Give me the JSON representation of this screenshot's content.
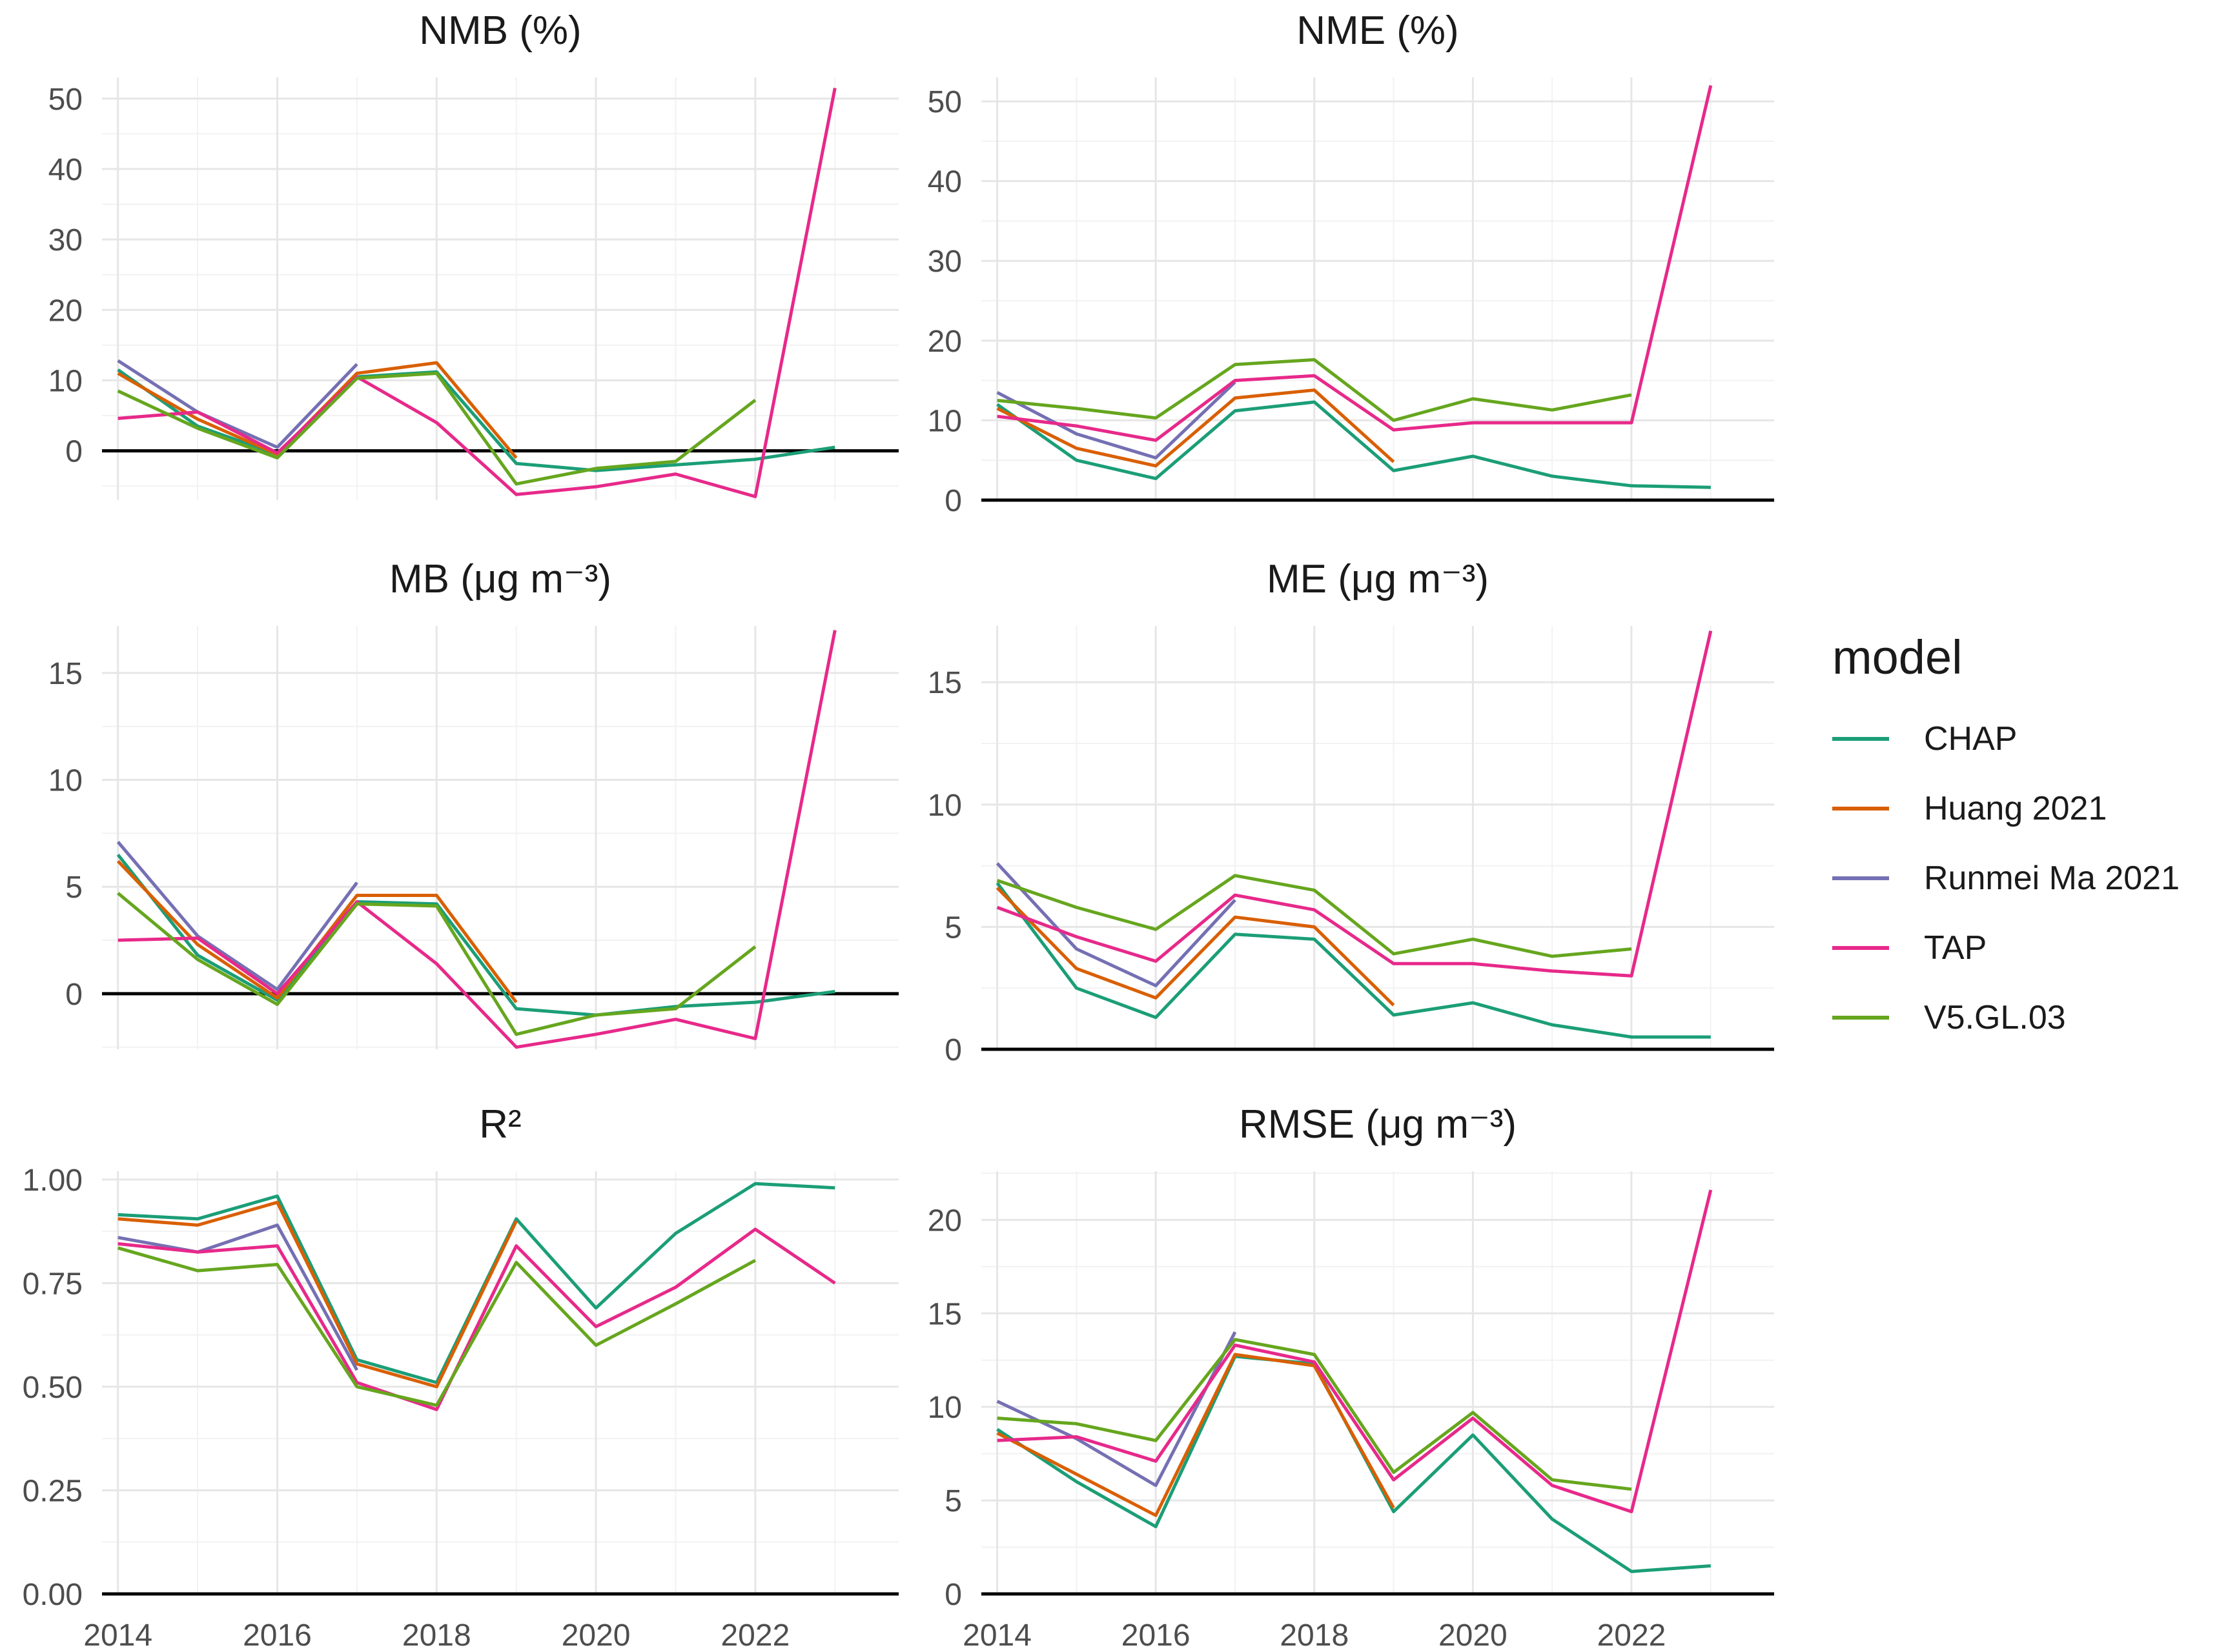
{
  "legend": {
    "title": "model",
    "items": [
      {
        "name": "CHAP",
        "color": "#1b9e77"
      },
      {
        "name": "Huang 2021",
        "color": "#d95f02"
      },
      {
        "name": "Runmei Ma 2021",
        "color": "#7570b3"
      },
      {
        "name": "TAP",
        "color": "#e7298a"
      },
      {
        "name": "V5.GL.03",
        "color": "#66a61e"
      }
    ]
  },
  "chart_data": [
    {
      "type": "line",
      "title": "NMB (%)",
      "xlabel": "",
      "ylabel": "",
      "x_ticks": [
        2014,
        2016,
        2018,
        2020,
        2022
      ],
      "ylim": [
        -7,
        53
      ],
      "y_ticks": [
        0,
        10,
        20,
        30,
        40,
        50
      ],
      "zero_line": true,
      "series": [
        {
          "name": "CHAP",
          "x": [
            2014,
            2015,
            2016,
            2017,
            2018,
            2019,
            2020,
            2021,
            2022,
            2023
          ],
          "values": [
            11.5,
            3.5,
            -0.5,
            10.5,
            11.2,
            -1.8,
            -2.8,
            -2.0,
            -1.2,
            0.5
          ]
        },
        {
          "name": "Huang 2021",
          "x": [
            2014,
            2015,
            2016,
            2017,
            2018,
            2019
          ],
          "values": [
            11.0,
            4.5,
            -0.5,
            11.0,
            12.5,
            -1.0
          ]
        },
        {
          "name": "Runmei Ma 2021",
          "x": [
            2014,
            2015,
            2016,
            2017
          ],
          "values": [
            12.8,
            5.5,
            0.5,
            12.3
          ]
        },
        {
          "name": "TAP",
          "x": [
            2014,
            2015,
            2016,
            2017,
            2018,
            2019,
            2020,
            2021,
            2022,
            2023
          ],
          "values": [
            4.6,
            5.5,
            -0.3,
            10.5,
            4.0,
            -6.2,
            -5.1,
            -3.3,
            -6.5,
            51.5
          ]
        },
        {
          "name": "V5.GL.03",
          "x": [
            2014,
            2015,
            2016,
            2017,
            2018,
            2019,
            2020,
            2021,
            2022
          ],
          "values": [
            8.5,
            3.2,
            -1.0,
            10.3,
            11.0,
            -4.7,
            -2.5,
            -1.5,
            7.2
          ]
        }
      ]
    },
    {
      "type": "line",
      "title": "NME (%)",
      "xlabel": "",
      "ylabel": "",
      "x_ticks": [
        2014,
        2016,
        2018,
        2020,
        2022
      ],
      "ylim": [
        0,
        53
      ],
      "y_ticks": [
        0,
        10,
        20,
        30,
        40,
        50
      ],
      "zero_line": true,
      "series": [
        {
          "name": "CHAP",
          "x": [
            2014,
            2015,
            2016,
            2017,
            2018,
            2019,
            2020,
            2021,
            2022,
            2023
          ],
          "values": [
            12.0,
            5.0,
            2.7,
            11.2,
            12.3,
            3.7,
            5.5,
            3.0,
            1.8,
            1.6
          ]
        },
        {
          "name": "Huang 2021",
          "x": [
            2014,
            2015,
            2016,
            2017,
            2018,
            2019
          ],
          "values": [
            11.5,
            6.5,
            4.3,
            12.8,
            13.8,
            4.8
          ]
        },
        {
          "name": "Runmei Ma 2021",
          "x": [
            2014,
            2015,
            2016,
            2017
          ],
          "values": [
            13.5,
            8.3,
            5.3,
            14.8
          ]
        },
        {
          "name": "TAP",
          "x": [
            2014,
            2015,
            2016,
            2017,
            2018,
            2019,
            2020,
            2021,
            2022,
            2023
          ],
          "values": [
            10.5,
            9.3,
            7.5,
            15.0,
            15.6,
            8.8,
            9.7,
            9.7,
            9.7,
            52.0
          ]
        },
        {
          "name": "V5.GL.03",
          "x": [
            2014,
            2015,
            2016,
            2017,
            2018,
            2019,
            2020,
            2021,
            2022
          ],
          "values": [
            12.5,
            11.5,
            10.3,
            17.0,
            17.6,
            10.0,
            12.7,
            11.3,
            13.2
          ]
        }
      ]
    },
    {
      "type": "line",
      "title": "MB (μg m⁻³)",
      "xlabel": "",
      "ylabel": "",
      "x_ticks": [
        2014,
        2016,
        2018,
        2020,
        2022
      ],
      "ylim": [
        -2.6,
        17.2
      ],
      "y_ticks": [
        0,
        5,
        10,
        15
      ],
      "zero_line": true,
      "series": [
        {
          "name": "CHAP",
          "x": [
            2014,
            2015,
            2016,
            2017,
            2018,
            2019,
            2020,
            2021,
            2022,
            2023
          ],
          "values": [
            6.5,
            1.8,
            -0.3,
            4.3,
            4.2,
            -0.7,
            -1.0,
            -0.6,
            -0.4,
            0.1
          ]
        },
        {
          "name": "Huang 2021",
          "x": [
            2014,
            2015,
            2016,
            2017,
            2018,
            2019
          ],
          "values": [
            6.2,
            2.3,
            -0.2,
            4.6,
            4.6,
            -0.4
          ]
        },
        {
          "name": "Runmei Ma 2021",
          "x": [
            2014,
            2015,
            2016,
            2017
          ],
          "values": [
            7.1,
            2.7,
            0.2,
            5.2
          ]
        },
        {
          "name": "TAP",
          "x": [
            2014,
            2015,
            2016,
            2017,
            2018,
            2019,
            2020,
            2021,
            2022,
            2023
          ],
          "values": [
            2.5,
            2.6,
            0.0,
            4.3,
            1.4,
            -2.5,
            -1.9,
            -1.2,
            -2.1,
            17.0
          ]
        },
        {
          "name": "V5.GL.03",
          "x": [
            2014,
            2015,
            2016,
            2017,
            2018,
            2019,
            2020,
            2021,
            2022
          ],
          "values": [
            4.7,
            1.6,
            -0.5,
            4.2,
            4.1,
            -1.9,
            -1.0,
            -0.7,
            2.2
          ]
        }
      ]
    },
    {
      "type": "line",
      "title": "ME (μg m⁻³)",
      "xlabel": "",
      "ylabel": "",
      "x_ticks": [
        2014,
        2016,
        2018,
        2020,
        2022
      ],
      "ylim": [
        0,
        17.3
      ],
      "y_ticks": [
        0,
        5,
        10,
        15
      ],
      "zero_line": true,
      "series": [
        {
          "name": "CHAP",
          "x": [
            2014,
            2015,
            2016,
            2017,
            2018,
            2019,
            2020,
            2021,
            2022,
            2023
          ],
          "values": [
            6.8,
            2.5,
            1.3,
            4.7,
            4.5,
            1.4,
            1.9,
            1.0,
            0.5,
            0.5
          ]
        },
        {
          "name": "Huang 2021",
          "x": [
            2014,
            2015,
            2016,
            2017,
            2018,
            2019
          ],
          "values": [
            6.6,
            3.3,
            2.1,
            5.4,
            5.0,
            1.8
          ]
        },
        {
          "name": "Runmei Ma 2021",
          "x": [
            2014,
            2015,
            2016,
            2017
          ],
          "values": [
            7.6,
            4.1,
            2.6,
            6.1
          ]
        },
        {
          "name": "TAP",
          "x": [
            2014,
            2015,
            2016,
            2017,
            2018,
            2019,
            2020,
            2021,
            2022,
            2023
          ],
          "values": [
            5.8,
            4.6,
            3.6,
            6.3,
            5.7,
            3.5,
            3.5,
            3.2,
            3.0,
            17.1
          ]
        },
        {
          "name": "V5.GL.03",
          "x": [
            2014,
            2015,
            2016,
            2017,
            2018,
            2019,
            2020,
            2021,
            2022
          ],
          "values": [
            6.9,
            5.8,
            4.9,
            7.1,
            6.5,
            3.9,
            4.5,
            3.8,
            4.1
          ]
        }
      ]
    },
    {
      "type": "line",
      "title": "R²",
      "xlabel": "",
      "ylabel": "",
      "x_ticks": [
        2014,
        2016,
        2018,
        2020,
        2022
      ],
      "ylim": [
        0,
        1.02
      ],
      "y_ticks": [
        "0.00",
        "0.25",
        "0.50",
        "0.75",
        "1.00"
      ],
      "zero_line": true,
      "series": [
        {
          "name": "CHAP",
          "x": [
            2014,
            2015,
            2016,
            2017,
            2018,
            2019,
            2020,
            2021,
            2022,
            2023
          ],
          "values": [
            0.915,
            0.905,
            0.96,
            0.565,
            0.51,
            0.905,
            0.69,
            0.87,
            0.99,
            0.98
          ]
        },
        {
          "name": "Huang 2021",
          "x": [
            2014,
            2015,
            2016,
            2017,
            2018,
            2019
          ],
          "values": [
            0.905,
            0.89,
            0.945,
            0.555,
            0.5,
            0.9
          ]
        },
        {
          "name": "Runmei Ma 2021",
          "x": [
            2014,
            2015,
            2016,
            2017
          ],
          "values": [
            0.86,
            0.825,
            0.89,
            0.54
          ]
        },
        {
          "name": "TAP",
          "x": [
            2014,
            2015,
            2016,
            2017,
            2018,
            2019,
            2020,
            2021,
            2022,
            2023
          ],
          "values": [
            0.845,
            0.825,
            0.84,
            0.51,
            0.445,
            0.84,
            0.645,
            0.74,
            0.88,
            0.75
          ]
        },
        {
          "name": "V5.GL.03",
          "x": [
            2014,
            2015,
            2016,
            2017,
            2018,
            2019,
            2020,
            2021,
            2022
          ],
          "values": [
            0.835,
            0.78,
            0.795,
            0.5,
            0.455,
            0.8,
            0.6,
            0.7,
            0.805
          ]
        }
      ]
    },
    {
      "type": "line",
      "title": "RMSE (μg m⁻³)",
      "xlabel": "",
      "ylabel": "",
      "x_ticks": [
        2014,
        2016,
        2018,
        2020,
        2022
      ],
      "ylim": [
        0,
        22.6
      ],
      "y_ticks": [
        0,
        5,
        10,
        15,
        20
      ],
      "zero_line": true,
      "series": [
        {
          "name": "CHAP",
          "x": [
            2014,
            2015,
            2016,
            2017,
            2018,
            2019,
            2020,
            2021,
            2022,
            2023
          ],
          "values": [
            8.8,
            6.0,
            3.6,
            12.7,
            12.3,
            4.4,
            8.5,
            4.0,
            1.2,
            1.5
          ]
        },
        {
          "name": "Huang 2021",
          "x": [
            2014,
            2015,
            2016,
            2017,
            2018,
            2019
          ],
          "values": [
            8.6,
            6.4,
            4.2,
            12.8,
            12.2,
            4.6
          ]
        },
        {
          "name": "Runmei Ma 2021",
          "x": [
            2014,
            2015,
            2016,
            2017
          ],
          "values": [
            10.3,
            8.3,
            5.8,
            14.0
          ]
        },
        {
          "name": "TAP",
          "x": [
            2014,
            2015,
            2016,
            2017,
            2018,
            2019,
            2020,
            2021,
            2022,
            2023
          ],
          "values": [
            8.2,
            8.4,
            7.1,
            13.3,
            12.4,
            6.1,
            9.4,
            5.8,
            4.4,
            21.6
          ]
        },
        {
          "name": "V5.GL.03",
          "x": [
            2014,
            2015,
            2016,
            2017,
            2018,
            2019,
            2020,
            2021,
            2022
          ],
          "values": [
            9.4,
            9.1,
            8.2,
            13.6,
            12.8,
            6.5,
            9.7,
            6.1,
            5.6
          ]
        }
      ]
    }
  ]
}
